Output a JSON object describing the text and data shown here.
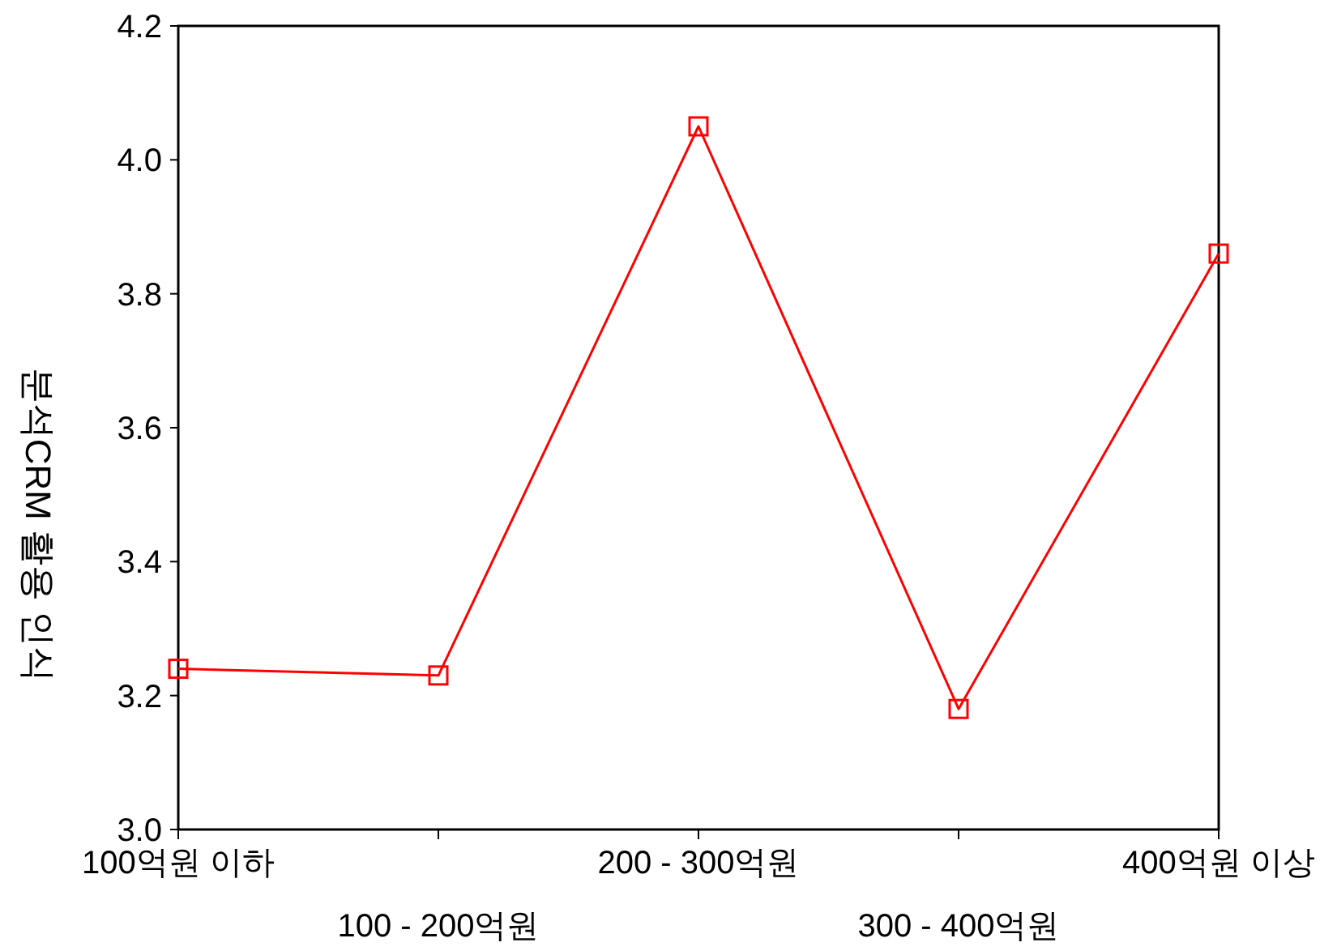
{
  "chart_data": {
    "type": "line",
    "ylabel": "분석CRM 활용 인식",
    "categories": [
      "100억원 이하",
      "100 - 200억원",
      "200 - 300억원",
      "300 - 400억원",
      "400억원 이상"
    ],
    "series": [
      {
        "color": "#ff0000",
        "values": [
          3.24,
          3.23,
          4.05,
          3.18,
          3.86
        ]
      }
    ],
    "ylim": [
      3.0,
      4.2
    ],
    "yticks": [
      {
        "value": 3.0,
        "label": "3.0"
      },
      {
        "value": 3.2,
        "label": "3.2"
      },
      {
        "value": 3.4,
        "label": "3.4"
      },
      {
        "value": 3.6,
        "label": "3.6"
      },
      {
        "value": 3.8,
        "label": "3.8"
      },
      {
        "value": 4.0,
        "label": "4.0"
      },
      {
        "value": 4.2,
        "label": "4.2"
      }
    ],
    "marker": "square",
    "line_style": "solid"
  }
}
